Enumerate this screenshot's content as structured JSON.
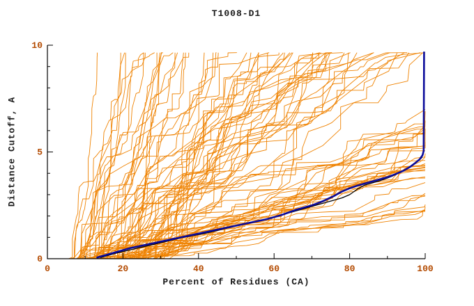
{
  "chart_data": {
    "type": "line",
    "title": "T1008-D1",
    "xlabel": "Percent of Residues (CA)",
    "ylabel": "Distance Cutoff, A",
    "xlim": [
      0,
      100
    ],
    "ylim": [
      0,
      10
    ],
    "xticks": [
      0,
      20,
      40,
      60,
      80,
      100
    ],
    "yticks": [
      0,
      5,
      10
    ],
    "x_minor_step": 10,
    "y_minor_step": 1,
    "grid": false,
    "legend": "none",
    "colors": {
      "ensemble": "#ef8200",
      "best_model": "#0a0a9a",
      "reference": "#000000",
      "axis": "#000000",
      "tick_labels": "#b34a00",
      "title": "#1a1a1a",
      "axis_labels": "#1a1a1a",
      "background": "#ffffff"
    },
    "series": [
      {
        "name": "server-models",
        "role": "ensemble",
        "color": "#ef8200",
        "width": 0.9,
        "generated": {
          "seed": 1008,
          "count": 95,
          "x_start_range": [
            5,
            30
          ],
          "y_top": 9.65,
          "reach_top_fraction": 0.62
        }
      },
      {
        "name": "reference-model",
        "role": "line",
        "color": "#000000",
        "width": 1.3,
        "points": [
          [
            14,
            0.05
          ],
          [
            18,
            0.25
          ],
          [
            24,
            0.5
          ],
          [
            30,
            0.75
          ],
          [
            36,
            1.0
          ],
          [
            42,
            1.2
          ],
          [
            48,
            1.45
          ],
          [
            54,
            1.7
          ],
          [
            60,
            1.95
          ],
          [
            64,
            2.15
          ],
          [
            68,
            2.35
          ],
          [
            71,
            2.5
          ],
          [
            74,
            2.65
          ],
          [
            76,
            2.75
          ],
          [
            78,
            2.85
          ],
          [
            80,
            3.0
          ],
          [
            82,
            3.25
          ],
          [
            84,
            3.45
          ],
          [
            86,
            3.55
          ],
          [
            88,
            3.65
          ],
          [
            90,
            3.78
          ],
          [
            92,
            3.92
          ],
          [
            95,
            4.2
          ],
          [
            97,
            4.45
          ],
          [
            98.3,
            4.6
          ],
          [
            99.2,
            4.75
          ]
        ]
      },
      {
        "name": "best-model",
        "role": "line",
        "color": "#0a0a9a",
        "width": 2.6,
        "points": [
          [
            13,
            0.05
          ],
          [
            15,
            0.15
          ],
          [
            18,
            0.3
          ],
          [
            22,
            0.5
          ],
          [
            26,
            0.65
          ],
          [
            30,
            0.8
          ],
          [
            34,
            0.95
          ],
          [
            38,
            1.1
          ],
          [
            42,
            1.25
          ],
          [
            46,
            1.4
          ],
          [
            50,
            1.55
          ],
          [
            54,
            1.7
          ],
          [
            58,
            1.85
          ],
          [
            62,
            2.05
          ],
          [
            66,
            2.3
          ],
          [
            70,
            2.5
          ],
          [
            73,
            2.7
          ],
          [
            76,
            2.95
          ],
          [
            78,
            3.15
          ],
          [
            80,
            3.3
          ],
          [
            82,
            3.42
          ],
          [
            84,
            3.52
          ],
          [
            86,
            3.62
          ],
          [
            88,
            3.72
          ],
          [
            90,
            3.82
          ],
          [
            92,
            3.95
          ],
          [
            94,
            4.1
          ],
          [
            96,
            4.3
          ],
          [
            97.5,
            4.5
          ],
          [
            98.5,
            4.65
          ],
          [
            99.3,
            4.85
          ],
          [
            99.6,
            5.05
          ],
          [
            99.7,
            9.7
          ]
        ]
      }
    ]
  }
}
